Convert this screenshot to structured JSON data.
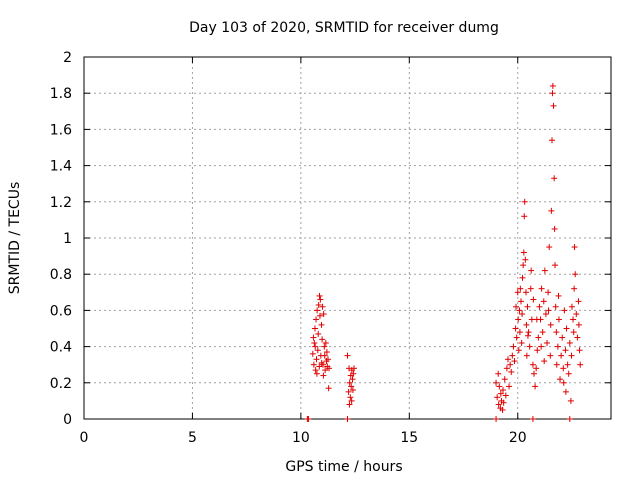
{
  "chart_data": {
    "type": "scatter",
    "title": "Day 103 of 2020, SRMTID for receiver dumg",
    "xlabel": "GPS time / hours",
    "ylabel": "SRMTID / TECUs",
    "xlim": [
      0,
      24.3
    ],
    "ylim": [
      0,
      2
    ],
    "xticks": [
      0,
      5,
      10,
      15,
      20
    ],
    "xtick_labels": [
      "0",
      "5",
      "10",
      "15",
      "20"
    ],
    "yticks": [
      0,
      0.2,
      0.4,
      0.6,
      0.8,
      1,
      1.2,
      1.4,
      1.6,
      1.8,
      2
    ],
    "ytick_labels": [
      "0",
      "0.2",
      "0.4",
      "0.6",
      "0.8",
      "1",
      "1.2",
      "1.4",
      "1.6",
      "1.8",
      "2"
    ],
    "grid": true,
    "marker": "plus",
    "color": "#e00000",
    "series": [
      {
        "name": "SRMTID",
        "points": [
          [
            10.3,
            0.0
          ],
          [
            10.35,
            0.0
          ],
          [
            12.15,
            0.0
          ],
          [
            19.0,
            0.0
          ],
          [
            20.7,
            0.0
          ],
          [
            22.4,
            0.0
          ],
          [
            10.55,
            0.36
          ],
          [
            10.6,
            0.3
          ],
          [
            10.62,
            0.42
          ],
          [
            10.65,
            0.5
          ],
          [
            10.68,
            0.27
          ],
          [
            10.7,
            0.55
          ],
          [
            10.72,
            0.33
          ],
          [
            10.75,
            0.6
          ],
          [
            10.78,
            0.38
          ],
          [
            10.8,
            0.47
          ],
          [
            10.82,
            0.63
          ],
          [
            10.85,
            0.29
          ],
          [
            10.88,
            0.57
          ],
          [
            10.9,
            0.66
          ],
          [
            10.92,
            0.35
          ],
          [
            10.95,
            0.52
          ],
          [
            10.98,
            0.44
          ],
          [
            11.0,
            0.62
          ],
          [
            11.02,
            0.3
          ],
          [
            11.05,
            0.58
          ],
          [
            11.08,
            0.4
          ],
          [
            11.1,
            0.35
          ],
          [
            11.12,
            0.27
          ],
          [
            11.15,
            0.42
          ],
          [
            11.18,
            0.32
          ],
          [
            11.2,
            0.37
          ],
          [
            11.22,
            0.29
          ],
          [
            11.25,
            0.33
          ],
          [
            11.28,
            0.17
          ],
          [
            11.3,
            0.28
          ],
          [
            10.58,
            0.45
          ],
          [
            10.74,
            0.25
          ],
          [
            10.86,
            0.68
          ],
          [
            11.04,
            0.24
          ],
          [
            10.66,
            0.4
          ],
          [
            10.96,
            0.31
          ],
          [
            12.15,
            0.35
          ],
          [
            12.2,
            0.15
          ],
          [
            12.22,
            0.28
          ],
          [
            12.25,
            0.2
          ],
          [
            12.28,
            0.12
          ],
          [
            12.3,
            0.24
          ],
          [
            12.32,
            0.18
          ],
          [
            12.35,
            0.27
          ],
          [
            12.38,
            0.22
          ],
          [
            12.4,
            0.16
          ],
          [
            12.42,
            0.25
          ],
          [
            12.45,
            0.28
          ],
          [
            12.24,
            0.08
          ],
          [
            12.34,
            0.1
          ],
          [
            19.0,
            0.2
          ],
          [
            19.05,
            0.12
          ],
          [
            19.1,
            0.25
          ],
          [
            19.12,
            0.08
          ],
          [
            19.15,
            0.18
          ],
          [
            19.2,
            0.06
          ],
          [
            19.22,
            0.14
          ],
          [
            19.25,
            0.1
          ],
          [
            19.3,
            0.05
          ],
          [
            19.32,
            0.16
          ],
          [
            19.35,
            0.09
          ],
          [
            19.4,
            0.22
          ],
          [
            19.45,
            0.13
          ],
          [
            19.5,
            0.28
          ],
          [
            19.55,
            0.33
          ],
          [
            19.6,
            0.18
          ],
          [
            19.65,
            0.3
          ],
          [
            19.7,
            0.26
          ],
          [
            19.75,
            0.35
          ],
          [
            19.8,
            0.4
          ],
          [
            19.85,
            0.32
          ],
          [
            19.9,
            0.5
          ],
          [
            19.92,
            0.62
          ],
          [
            19.95,
            0.45
          ],
          [
            20.0,
            0.7
          ],
          [
            20.02,
            0.55
          ],
          [
            20.05,
            0.38
          ],
          [
            20.08,
            0.6
          ],
          [
            20.1,
            0.48
          ],
          [
            20.12,
            0.72
          ],
          [
            20.15,
            0.65
          ],
          [
            20.18,
            0.42
          ],
          [
            20.2,
            0.58
          ],
          [
            20.22,
            0.78
          ],
          [
            20.25,
            0.85
          ],
          [
            20.28,
            0.92
          ],
          [
            20.3,
            1.12
          ],
          [
            20.32,
            1.2
          ],
          [
            20.35,
            0.88
          ],
          [
            20.38,
            0.7
          ],
          [
            20.4,
            0.52
          ],
          [
            20.42,
            0.35
          ],
          [
            20.45,
            0.62
          ],
          [
            20.5,
            0.48
          ],
          [
            20.55,
            0.4
          ],
          [
            20.6,
            0.72
          ],
          [
            20.65,
            0.55
          ],
          [
            20.7,
            0.3
          ],
          [
            20.75,
            0.25
          ],
          [
            20.8,
            0.18
          ],
          [
            20.85,
            0.28
          ],
          [
            20.9,
            0.38
          ],
          [
            20.95,
            0.45
          ],
          [
            21.0,
            0.62
          ],
          [
            21.05,
            0.55
          ],
          [
            21.1,
            0.72
          ],
          [
            21.15,
            0.48
          ],
          [
            21.2,
            0.65
          ],
          [
            21.25,
            0.82
          ],
          [
            21.3,
            0.58
          ],
          [
            21.35,
            0.42
          ],
          [
            21.4,
            0.7
          ],
          [
            21.45,
            0.95
          ],
          [
            21.5,
            0.35
          ],
          [
            21.52,
            0.52
          ],
          [
            21.55,
            1.15
          ],
          [
            21.58,
            1.54
          ],
          [
            21.6,
            1.8
          ],
          [
            21.62,
            1.84
          ],
          [
            21.65,
            1.73
          ],
          [
            21.68,
            1.33
          ],
          [
            21.7,
            1.05
          ],
          [
            21.72,
            0.85
          ],
          [
            21.75,
            0.62
          ],
          [
            21.78,
            0.48
          ],
          [
            21.8,
            0.3
          ],
          [
            21.85,
            0.4
          ],
          [
            21.9,
            0.55
          ],
          [
            21.95,
            0.22
          ],
          [
            22.0,
            0.35
          ],
          [
            22.05,
            0.45
          ],
          [
            22.1,
            0.28
          ],
          [
            22.15,
            0.6
          ],
          [
            22.2,
            0.38
          ],
          [
            22.25,
            0.5
          ],
          [
            22.3,
            0.3
          ],
          [
            22.35,
            0.25
          ],
          [
            22.4,
            0.42
          ],
          [
            22.45,
            0.1
          ],
          [
            22.5,
            0.62
          ],
          [
            22.55,
            0.55
          ],
          [
            22.6,
            0.72
          ],
          [
            22.62,
            0.95
          ],
          [
            22.65,
            0.8
          ],
          [
            22.7,
            0.58
          ],
          [
            22.75,
            0.45
          ],
          [
            22.8,
            0.65
          ],
          [
            22.82,
            0.52
          ],
          [
            22.85,
            0.38
          ],
          [
            22.88,
            0.3
          ],
          [
            21.22,
            0.32
          ],
          [
            21.42,
            0.6
          ],
          [
            20.62,
            0.82
          ],
          [
            20.88,
            0.55
          ],
          [
            22.12,
            0.2
          ],
          [
            22.48,
            0.35
          ],
          [
            21.88,
            0.68
          ],
          [
            20.47,
            0.46
          ],
          [
            20.72,
            0.66
          ],
          [
            21.08,
            0.4
          ],
          [
            22.22,
            0.15
          ],
          [
            22.58,
            0.48
          ]
        ]
      }
    ]
  }
}
